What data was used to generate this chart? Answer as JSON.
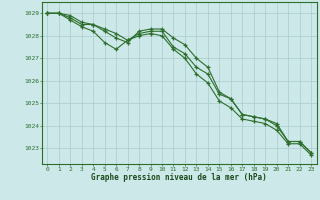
{
  "x": [
    0,
    1,
    2,
    3,
    4,
    5,
    6,
    7,
    8,
    9,
    10,
    11,
    12,
    13,
    14,
    15,
    16,
    17,
    18,
    19,
    20,
    21,
    22,
    23
  ],
  "line1": [
    1029.0,
    1029.0,
    1028.8,
    1028.5,
    1028.5,
    1028.3,
    1028.1,
    1027.8,
    1028.1,
    1028.2,
    1028.2,
    1027.5,
    1027.2,
    1026.6,
    1026.3,
    1025.4,
    1025.2,
    1024.5,
    1024.4,
    1024.3,
    1024.1,
    1023.3,
    1023.3,
    1022.8
  ],
  "line2": [
    1029.0,
    1029.0,
    1028.7,
    1028.4,
    1028.2,
    1027.7,
    1027.4,
    1027.8,
    1028.0,
    1028.1,
    1028.0,
    1027.4,
    1027.0,
    1026.3,
    1025.9,
    1025.1,
    1024.8,
    1024.3,
    1024.2,
    1024.1,
    1023.8,
    1023.2,
    1023.2,
    1022.7
  ],
  "line3": [
    1029.0,
    1029.0,
    1028.9,
    1028.6,
    1028.5,
    1028.2,
    1027.9,
    1027.7,
    1028.2,
    1028.3,
    1028.3,
    1027.9,
    1027.6,
    1027.0,
    1026.6,
    1025.5,
    1025.2,
    1024.5,
    1024.4,
    1024.3,
    1024.0,
    1023.3,
    1023.3,
    1022.8
  ],
  "bg_color": "#cce8e8",
  "grid_color": "#aacccc",
  "line_color": "#2d6e2d",
  "tick_color": "#2d6e2d",
  "label_color": "#1a4a1a",
  "ylabel_ticks": [
    1023,
    1024,
    1025,
    1026,
    1027,
    1028,
    1029
  ],
  "xlabel": "Graphe pression niveau de la mer (hPa)",
  "ylim": [
    1022.3,
    1029.5
  ],
  "xlim": [
    -0.5,
    23.5
  ]
}
